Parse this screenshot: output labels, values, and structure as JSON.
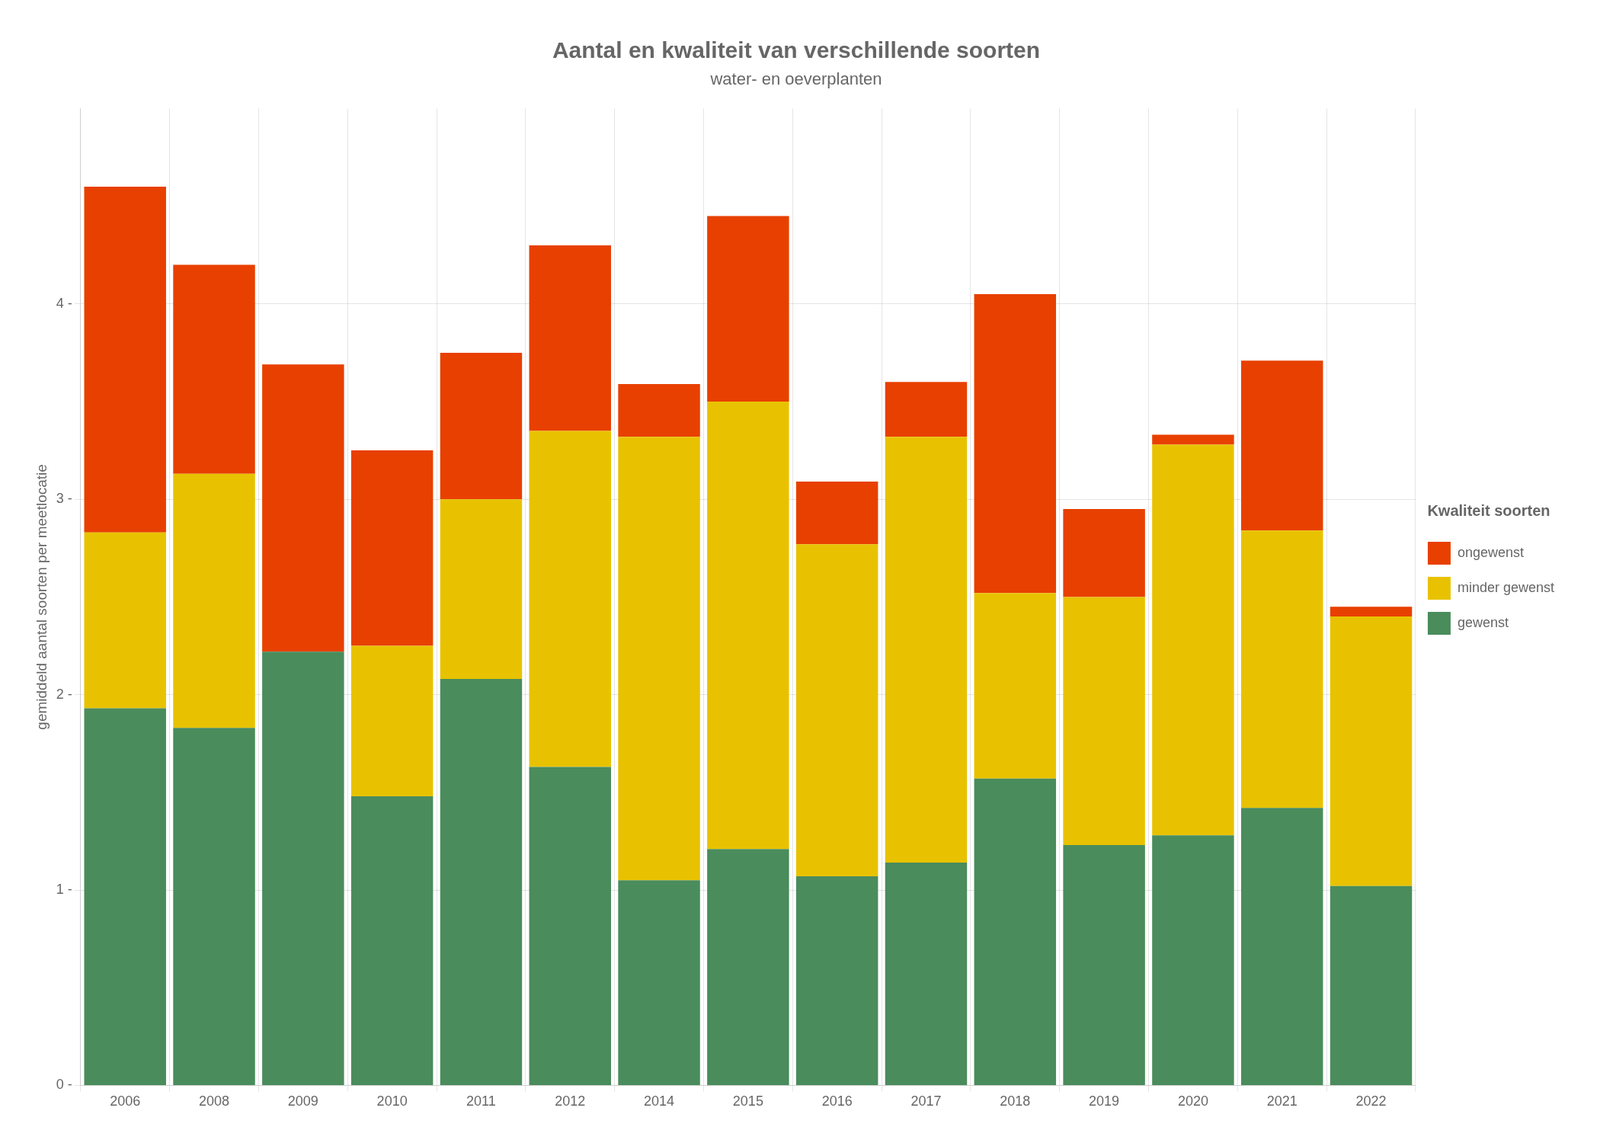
{
  "chart_data": {
    "type": "bar",
    "title": "Aantal en kwaliteit van verschillende soorten",
    "subtitle": "water- en oeverplanten",
    "ylabel": "gemiddeld aantal soorten per meetlocatie",
    "categories": [
      "2006",
      "2008",
      "2009",
      "2010",
      "2011",
      "2012",
      "2014",
      "2015",
      "2016",
      "2017",
      "2018",
      "2019",
      "2020",
      "2021",
      "2022"
    ],
    "series": [
      {
        "name": "gewenst",
        "color": "#4a8c5c",
        "values": [
          1.93,
          1.83,
          2.22,
          1.48,
          2.08,
          1.63,
          1.05,
          1.21,
          1.07,
          1.14,
          1.57,
          1.23,
          1.28,
          1.42,
          1.02
        ]
      },
      {
        "name": "minder gewenst",
        "color": "#e8c200",
        "values": [
          0.9,
          1.3,
          0.0,
          0.77,
          0.92,
          1.72,
          2.27,
          2.29,
          1.7,
          2.18,
          0.95,
          1.27,
          2.0,
          1.42,
          1.38
        ]
      },
      {
        "name": "ongewenst",
        "color": "#e84000",
        "values": [
          1.77,
          1.07,
          1.47,
          1.0,
          0.75,
          0.95,
          0.27,
          0.95,
          0.32,
          0.28,
          1.53,
          0.45,
          0.05,
          0.87,
          0.05
        ]
      }
    ],
    "legend_title": "Kwaliteit soorten",
    "legend": "right",
    "stacked": true,
    "grid": true,
    "ylim": [
      0,
      5
    ],
    "yticks": [
      {
        "value": 0,
        "label": "0 -"
      },
      {
        "value": 1,
        "label": "1 -"
      },
      {
        "value": 2,
        "label": "2 -"
      },
      {
        "value": 3,
        "label": "3 -"
      },
      {
        "value": 4,
        "label": "4 -"
      }
    ]
  }
}
